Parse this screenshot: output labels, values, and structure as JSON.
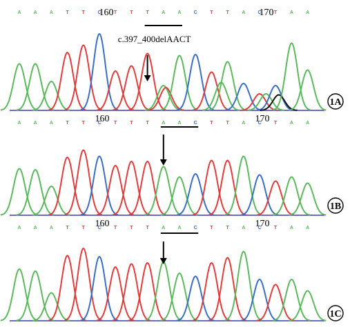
{
  "figure": {
    "colors": {
      "A": "#5cb85c",
      "T": "#e03c3c",
      "C": "#3a6ec2",
      "G": "#111111",
      "baseline": "#3a3ab0"
    },
    "panels": [
      {
        "label": "1A",
        "sequence": "AAATTCTTTAACTTACTAA",
        "positions": [
          {
            "text": "160",
            "base_index": 5
          },
          {
            "text": "170",
            "base_index": 15
          }
        ],
        "annotation": "c.397_400delAACT",
        "bar": {
          "from_index": 8,
          "to_index": 10
        },
        "arrow_index": 8,
        "peaks": [
          {
            "base": "A",
            "index": 0,
            "h": 0.45
          },
          {
            "base": "A",
            "index": 1,
            "h": 0.45
          },
          {
            "base": "A",
            "index": 2,
            "h": 0.28
          },
          {
            "base": "T",
            "index": 3,
            "h": 0.56
          },
          {
            "base": "T",
            "index": 4,
            "h": 0.63
          },
          {
            "base": "C",
            "index": 5,
            "h": 0.74
          },
          {
            "base": "T",
            "index": 6,
            "h": 0.38
          },
          {
            "base": "T",
            "index": 7,
            "h": 0.43
          },
          {
            "base": "T",
            "index": 8,
            "h": 0.55
          },
          {
            "base": "A",
            "index": 9,
            "h": 0.24
          },
          {
            "base": "T",
            "index": 9.15,
            "h": 0.22
          },
          {
            "base": "A",
            "index": 10,
            "h": 0.53
          },
          {
            "base": "C",
            "index": 11,
            "h": 0.54
          },
          {
            "base": "T",
            "index": 12,
            "h": 0.37
          },
          {
            "base": "A",
            "index": 12.6,
            "h": 0.27
          },
          {
            "base": "A",
            "index": 13,
            "h": 0.47
          },
          {
            "base": "C",
            "index": 14,
            "h": 0.26
          },
          {
            "base": "T",
            "index": 15,
            "h": 0.16
          },
          {
            "base": "A",
            "index": 15.4,
            "h": 0.16
          },
          {
            "base": "C",
            "index": 16,
            "h": 0.24
          },
          {
            "base": "G",
            "index": 16.2,
            "h": 0.15
          },
          {
            "base": "A",
            "index": 17,
            "h": 0.65
          },
          {
            "base": "A",
            "index": 18,
            "h": 0.39
          }
        ]
      },
      {
        "label": "1B",
        "sequence": "AAATTCTTTAACTTACTAA",
        "positions": [
          {
            "text": "160",
            "base_index": 5
          },
          {
            "text": "170",
            "base_index": 15
          }
        ],
        "annotation": "",
        "bar": {
          "from_index": 9,
          "to_index": 11
        },
        "arrow_index": 9,
        "peaks": [
          {
            "base": "A",
            "index": 0,
            "h": 0.45
          },
          {
            "base": "A",
            "index": 1,
            "h": 0.44
          },
          {
            "base": "A",
            "index": 2,
            "h": 0.28
          },
          {
            "base": "T",
            "index": 3,
            "h": 0.56
          },
          {
            "base": "T",
            "index": 4,
            "h": 0.63
          },
          {
            "base": "C",
            "index": 5,
            "h": 0.57
          },
          {
            "base": "T",
            "index": 6,
            "h": 0.48
          },
          {
            "base": "T",
            "index": 7,
            "h": 0.52
          },
          {
            "base": "T",
            "index": 8,
            "h": 0.52
          },
          {
            "base": "A",
            "index": 9,
            "h": 0.47
          },
          {
            "base": "A",
            "index": 10,
            "h": 0.37
          },
          {
            "base": "C",
            "index": 11,
            "h": 0.4
          },
          {
            "base": "T",
            "index": 12,
            "h": 0.53
          },
          {
            "base": "T",
            "index": 13,
            "h": 0.53
          },
          {
            "base": "A",
            "index": 14,
            "h": 0.57
          },
          {
            "base": "C",
            "index": 15,
            "h": 0.39
          },
          {
            "base": "T",
            "index": 16,
            "h": 0.33
          },
          {
            "base": "A",
            "index": 17,
            "h": 0.37
          },
          {
            "base": "A",
            "index": 18,
            "h": 0.31
          }
        ]
      },
      {
        "label": "1C",
        "sequence": "AAATTCTTTAACTTACTAA",
        "positions": [
          {
            "text": "160",
            "base_index": 5
          },
          {
            "text": "170",
            "base_index": 15
          }
        ],
        "annotation": "",
        "bar": {
          "from_index": 9,
          "to_index": 11
        },
        "arrow_index": 9,
        "peaks": [
          {
            "base": "A",
            "index": 0,
            "h": 0.5
          },
          {
            "base": "A",
            "index": 1,
            "h": 0.48
          },
          {
            "base": "A",
            "index": 2,
            "h": 0.27
          },
          {
            "base": "T",
            "index": 3,
            "h": 0.63
          },
          {
            "base": "T",
            "index": 4,
            "h": 0.7
          },
          {
            "base": "C",
            "index": 5,
            "h": 0.62
          },
          {
            "base": "T",
            "index": 6,
            "h": 0.52
          },
          {
            "base": "T",
            "index": 7,
            "h": 0.55
          },
          {
            "base": "T",
            "index": 8,
            "h": 0.56
          },
          {
            "base": "A",
            "index": 9,
            "h": 0.57
          },
          {
            "base": "A",
            "index": 10,
            "h": 0.46
          },
          {
            "base": "C",
            "index": 11,
            "h": 0.43
          },
          {
            "base": "T",
            "index": 12,
            "h": 0.56
          },
          {
            "base": "T",
            "index": 13,
            "h": 0.61
          },
          {
            "base": "A",
            "index": 14,
            "h": 0.67
          },
          {
            "base": "C",
            "index": 15,
            "h": 0.4
          },
          {
            "base": "T",
            "index": 16,
            "h": 0.35
          },
          {
            "base": "A",
            "index": 17,
            "h": 0.4
          },
          {
            "base": "A",
            "index": 18,
            "h": 0.29
          }
        ]
      }
    ]
  }
}
